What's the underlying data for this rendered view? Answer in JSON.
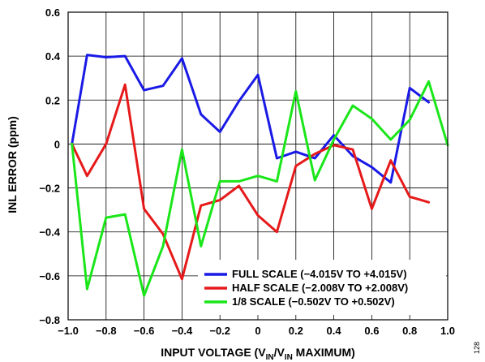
{
  "chart_data": {
    "type": "line",
    "xlabel": {
      "main": "INPUT VOLTAGE (V",
      "sub1": "IN",
      "mid": "/V",
      "sub2": "IN",
      "tail": " MAXIMUM)"
    },
    "ylabel": "INL ERROR (ppm)",
    "xlim": [
      -1.0,
      1.0
    ],
    "ylim": [
      -0.8,
      0.6
    ],
    "xticks": [
      -1.0,
      -0.8,
      -0.6,
      -0.4,
      -0.2,
      0,
      0.2,
      0.4,
      0.6,
      0.8,
      1.0
    ],
    "yticks": [
      -0.8,
      -0.6,
      -0.4,
      -0.2,
      0,
      0.2,
      0.4,
      0.6
    ],
    "xtick_labels": [
      "−1.0",
      "−0.8",
      "−0.6",
      "−0.4",
      "−0.2",
      "0",
      "0.2",
      "0.4",
      "0.6",
      "0.8",
      "1.0"
    ],
    "ytick_labels": [
      "−0.8",
      "−0.6",
      "−0.4",
      "−0.2",
      "0",
      "0.2",
      "0.4",
      "0.6"
    ],
    "grid": true,
    "legend_position": "bottom-right",
    "series": [
      {
        "name": "FULL SCALE (−4.015V TO +4.015V)",
        "color": "#1a1ae6",
        "x": [
          -0.98,
          -0.9,
          -0.8,
          -0.7,
          -0.6,
          -0.5,
          -0.4,
          -0.3,
          -0.2,
          -0.1,
          0.0,
          0.1,
          0.2,
          0.3,
          0.4,
          0.5,
          0.6,
          0.7,
          0.8,
          0.9
        ],
        "y": [
          0.0,
          0.405,
          0.395,
          0.4,
          0.245,
          0.265,
          0.39,
          0.135,
          0.055,
          0.195,
          0.315,
          -0.065,
          -0.035,
          -0.065,
          0.04,
          -0.055,
          -0.105,
          -0.175,
          0.255,
          0.19
        ]
      },
      {
        "name": "HALF SCALE (−2.008V TO +2.008V)",
        "color": "#e61a1a",
        "x": [
          -0.98,
          -0.9,
          -0.8,
          -0.7,
          -0.6,
          -0.5,
          -0.4,
          -0.3,
          -0.2,
          -0.1,
          0.0,
          0.1,
          0.2,
          0.3,
          0.4,
          0.5,
          0.6,
          0.7,
          0.8,
          0.9
        ],
        "y": [
          0.0,
          -0.145,
          0.0,
          0.27,
          -0.295,
          -0.41,
          -0.615,
          -0.28,
          -0.255,
          -0.19,
          -0.325,
          -0.4,
          -0.1,
          -0.045,
          -0.005,
          -0.025,
          -0.295,
          -0.075,
          -0.24,
          -0.265
        ]
      },
      {
        "name": "1/8 SCALE (−0.502V TO +0.502V)",
        "color": "#1ae61a",
        "x": [
          -0.98,
          -0.9,
          -0.8,
          -0.7,
          -0.6,
          -0.5,
          -0.4,
          -0.3,
          -0.2,
          -0.1,
          0.0,
          0.1,
          0.2,
          0.3,
          0.4,
          0.5,
          0.6,
          0.7,
          0.8,
          0.9,
          1.0
        ],
        "y": [
          0.0,
          -0.66,
          -0.335,
          -0.32,
          -0.69,
          -0.465,
          -0.025,
          -0.465,
          -0.17,
          -0.17,
          -0.145,
          -0.17,
          0.24,
          -0.165,
          0.02,
          0.175,
          0.115,
          0.02,
          0.11,
          0.285,
          -0.005
        ]
      }
    ],
    "figure_number": "128"
  }
}
